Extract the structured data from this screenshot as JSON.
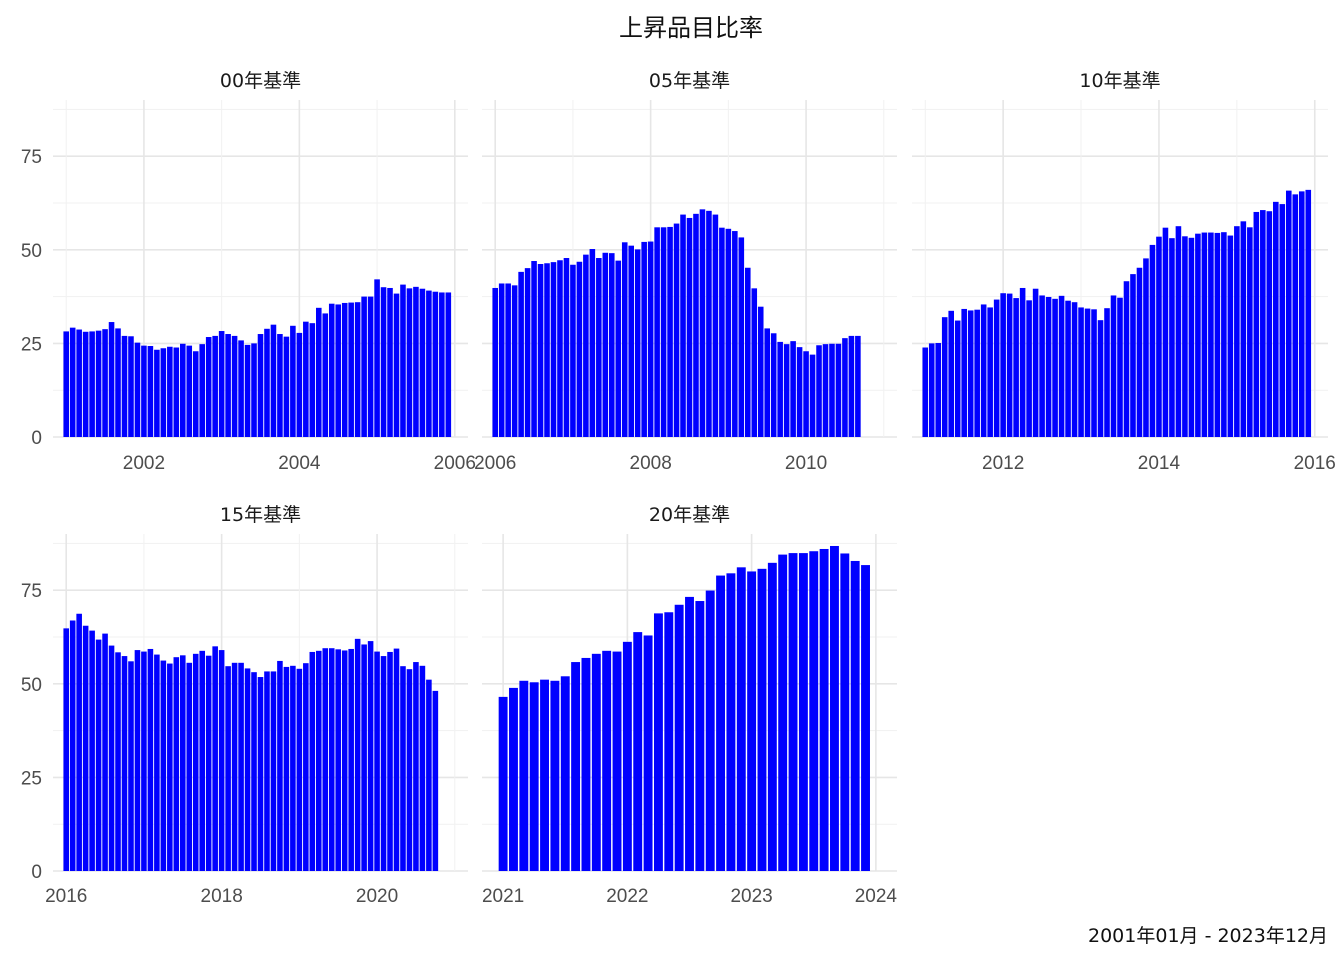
{
  "chart_data": {
    "type": "bar",
    "title": "上昇品目比率",
    "caption": "2001年01月 - 2023年12月",
    "xlabel": "",
    "ylabel": "",
    "ylim": [
      0,
      90
    ],
    "y_ticks": [
      0,
      25,
      50,
      75
    ],
    "bar_color": "#0000ff",
    "grid": true,
    "panels": [
      {
        "name": "00年基準",
        "x_range": [
          2000.83,
          2006.17
        ],
        "x_ticks": [
          "2002",
          "2004",
          "2006"
        ],
        "start": "2001-01",
        "values": [
          28.2,
          29.2,
          28.7,
          28.1,
          28.2,
          28.4,
          28.8,
          30.7,
          29.0,
          27.0,
          26.9,
          25.2,
          24.4,
          24.3,
          23.3,
          23.7,
          24.1,
          23.9,
          24.9,
          24.4,
          22.9,
          24.8,
          26.7,
          27.0,
          28.3,
          27.5,
          27.0,
          25.8,
          24.6,
          25.0,
          27.5,
          28.9,
          30.0,
          27.5,
          26.8,
          29.7,
          27.8,
          30.8,
          30.4,
          34.5,
          33.0,
          35.6,
          35.4,
          35.8,
          35.9,
          36.0,
          37.5,
          37.5,
          42.1,
          40.0,
          39.8,
          38.3,
          40.7,
          39.7,
          40.1,
          39.6,
          39.1,
          38.8,
          38.6,
          38.6
        ]
      },
      {
        "name": "05年基準",
        "x_range": [
          2005.83,
          2011.17
        ],
        "x_ticks": [
          "2006",
          "2008",
          "2010"
        ],
        "start": "2006-01",
        "values": [
          39.8,
          41.0,
          41.0,
          40.5,
          44.1,
          45.1,
          47.0,
          46.2,
          46.4,
          46.7,
          47.2,
          47.8,
          46.0,
          46.8,
          48.7,
          50.2,
          47.8,
          49.2,
          49.1,
          47.1,
          52.0,
          51.1,
          50.1,
          52.1,
          52.2,
          56.0,
          56.0,
          56.1,
          57.0,
          59.4,
          58.5,
          59.6,
          60.8,
          60.4,
          59.4,
          55.9,
          55.6,
          55.0,
          53.3,
          45.2,
          39.7,
          34.8,
          29.0,
          27.7,
          25.4,
          24.8,
          25.6,
          24.0,
          22.9,
          22.0,
          24.5,
          24.8,
          24.9,
          24.9,
          26.4,
          27.0,
          27.0
        ]
      },
      {
        "name": "10年基準",
        "x_range": [
          2010.83,
          2016.17
        ],
        "x_ticks": [
          "2012",
          "2014",
          "2016"
        ],
        "start": "2011-01",
        "values": [
          23.9,
          25.0,
          25.1,
          32.0,
          33.7,
          31.1,
          34.2,
          33.8,
          34.0,
          35.4,
          34.6,
          36.7,
          38.4,
          38.3,
          37.1,
          39.8,
          36.5,
          39.6,
          37.8,
          37.4,
          36.9,
          37.7,
          36.4,
          36.0,
          34.6,
          34.3,
          34.1,
          31.2,
          34.4,
          37.8,
          37.2,
          41.6,
          43.5,
          45.2,
          47.7,
          51.3,
          53.5,
          55.9,
          53.1,
          56.3,
          53.6,
          53.2,
          54.3,
          54.6,
          54.6,
          54.5,
          54.7,
          53.8,
          56.3,
          57.6,
          56.0,
          60.1,
          60.6,
          60.3,
          62.8,
          62.2,
          65.8,
          64.8,
          65.6,
          66.0
        ]
      },
      {
        "name": "15年基準",
        "x_range": [
          2015.83,
          2021.17
        ],
        "x_ticks": [
          "2016",
          "2018",
          "2020"
        ],
        "start": "2016-01",
        "values": [
          64.8,
          66.9,
          68.7,
          65.5,
          64.2,
          61.8,
          63.4,
          60.2,
          58.4,
          57.4,
          56.0,
          59.0,
          58.6,
          59.3,
          57.8,
          56.2,
          55.4,
          57.1,
          57.6,
          55.6,
          58.0,
          58.8,
          57.5,
          60.0,
          59.0,
          54.7,
          55.6,
          55.6,
          54.1,
          53.1,
          51.8,
          53.3,
          53.3,
          56.1,
          54.5,
          54.8,
          54.0,
          55.5,
          58.5,
          58.8,
          59.5,
          59.5,
          59.2,
          58.9,
          59.3,
          62.0,
          60.5,
          61.4,
          58.6,
          57.4,
          58.5,
          59.4,
          54.7,
          53.9,
          55.8,
          54.8,
          51.1,
          48.1
        ]
      },
      {
        "name": "20年基準",
        "x_range": [
          2020.83,
          2024.17
        ],
        "x_ticks": [
          "2021",
          "2022",
          "2023",
          "2024"
        ],
        "start": "2021-01",
        "values": [
          46.5,
          48.9,
          50.8,
          50.4,
          51.1,
          50.8,
          52.0,
          55.8,
          56.9,
          58.0,
          58.8,
          58.6,
          61.2,
          63.8,
          62.9,
          68.8,
          69.1,
          71.1,
          73.2,
          72.1,
          74.9,
          78.9,
          79.5,
          81.1,
          80.0,
          80.7,
          82.3,
          84.5,
          84.9,
          84.9,
          85.4,
          86.0,
          86.8,
          84.8,
          82.8,
          81.7
        ]
      }
    ]
  }
}
